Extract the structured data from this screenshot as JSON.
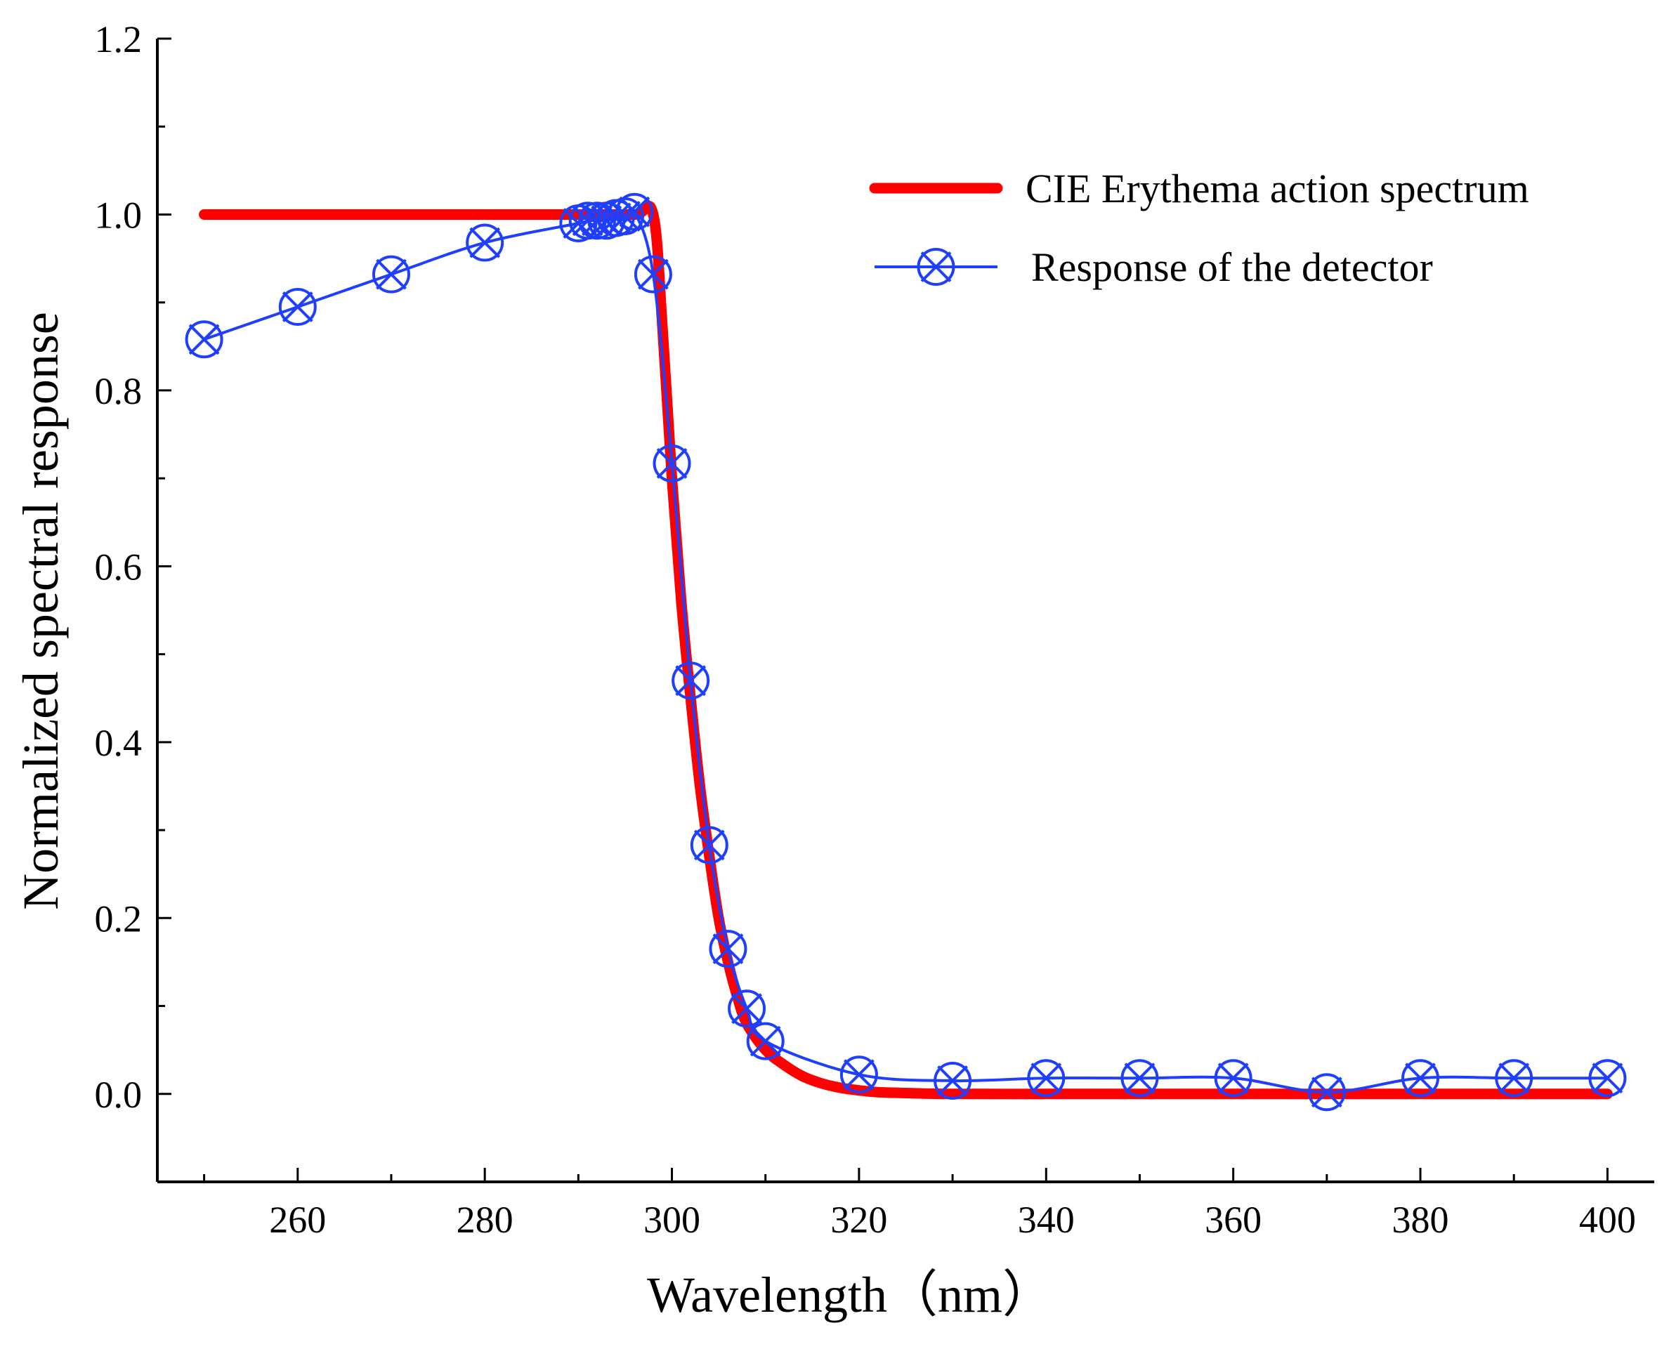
{
  "chart_data": {
    "type": "line",
    "title": "",
    "xlabel": "Wavelength（nm）",
    "ylabel": "Normalized spectral response",
    "xlim": [
      245,
      405
    ],
    "ylim": [
      -0.1,
      1.2
    ],
    "x_ticks": [
      260,
      280,
      300,
      320,
      340,
      360,
      380,
      400
    ],
    "x_tick_labels": [
      "260",
      "280",
      "300",
      "320",
      "340",
      "360",
      "380",
      "400"
    ],
    "y_ticks": [
      0.0,
      0.2,
      0.4,
      0.6,
      0.8,
      1.0,
      1.2
    ],
    "y_tick_labels": [
      "0.0",
      "0.2",
      "0.4",
      "0.6",
      "0.8",
      "1.0",
      "1.2"
    ],
    "grid": false,
    "legend_position": "top-right",
    "series": [
      {
        "name": "CIE Erythema action spectrum",
        "color": "#ff0000",
        "marker": "none",
        "x": [
          250,
          260,
          270,
          280,
          290,
          296,
          298,
          299,
          300,
          301,
          302,
          303,
          304,
          305,
          306,
          307,
          308,
          310,
          312,
          314,
          316,
          318,
          320,
          322,
          325,
          330,
          340,
          350,
          360,
          370,
          380,
          390,
          400
        ],
        "y": [
          1.0,
          1.0,
          1.0,
          1.0,
          1.0,
          1.0,
          1.0,
          0.87,
          0.7,
          0.56,
          0.45,
          0.35,
          0.27,
          0.2,
          0.15,
          0.11,
          0.08,
          0.05,
          0.033,
          0.02,
          0.012,
          0.007,
          0.004,
          0.002,
          0.001,
          0.0,
          0.0,
          0.0,
          0.0,
          0.0,
          0.0,
          0.0,
          0.0
        ]
      },
      {
        "name": "Response of the detector",
        "color": "#1f3fff",
        "marker": "circle-x",
        "x": [
          250,
          260,
          270,
          280,
          290,
          291,
          292,
          293,
          294,
          295,
          296,
          298,
          300,
          302,
          304,
          306,
          308,
          310,
          320,
          330,
          340,
          350,
          360,
          370,
          380,
          390,
          400
        ],
        "y": [
          0.858,
          0.895,
          0.932,
          0.968,
          0.99,
          0.993,
          0.993,
          0.993,
          0.996,
          0.998,
          1.003,
          0.932,
          0.717,
          0.47,
          0.283,
          0.165,
          0.097,
          0.06,
          0.022,
          0.015,
          0.018,
          0.018,
          0.018,
          0.002,
          0.018,
          0.018,
          0.018
        ]
      }
    ]
  }
}
